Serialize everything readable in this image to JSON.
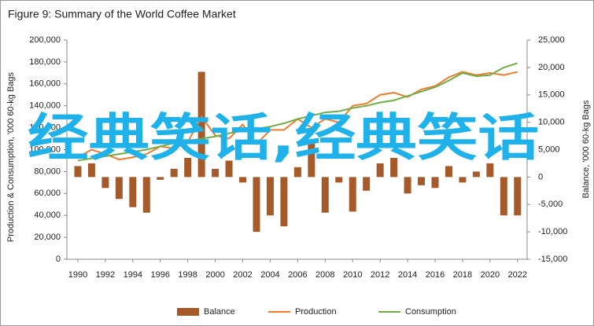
{
  "chart_data": {
    "type": "combo",
    "title": "Figure 9: Summary of the World Coffee Market",
    "y_label": "Production & Consumption, '000 60-kg Bags",
    "y2_label": "Balance, '000 60-kg Bags",
    "annotation": "经典笑话,经典笑话",
    "x": [
      1990,
      1991,
      1992,
      1993,
      1994,
      1995,
      1996,
      1997,
      1998,
      1999,
      2000,
      2001,
      2002,
      2003,
      2004,
      2005,
      2006,
      2007,
      2008,
      2009,
      2010,
      2011,
      2012,
      2013,
      2014,
      2015,
      2016,
      2017,
      2018,
      2019,
      2020,
      2021,
      2022
    ],
    "xlim": [
      1989.2,
      2022.7
    ],
    "xticks": [
      1990,
      1992,
      1994,
      1996,
      1998,
      2000,
      2002,
      2004,
      2006,
      2008,
      2010,
      2012,
      2014,
      2016,
      2018,
      2020,
      2022
    ],
    "ylim": [
      0,
      200000
    ],
    "yticks": [
      0,
      {
        "value": 20000,
        "label": "20,000"
      },
      {
        "value": 40000,
        "label": "40,000"
      },
      {
        "value": 60000,
        "label": "60,000"
      },
      {
        "value": 80000,
        "label": "80,000"
      },
      {
        "value": 100000,
        "label": "100,000"
      },
      {
        "value": 120000,
        "label": "120,000"
      },
      {
        "value": 140000,
        "label": "140,000"
      },
      {
        "value": 160000,
        "label": "160,000"
      },
      {
        "value": 180000,
        "label": "180,000"
      },
      {
        "value": 200000,
        "label": "200,000"
      }
    ],
    "y2lim": [
      -15000,
      25000
    ],
    "y2ticks": [
      {
        "value": -15000,
        "label": "-15,000"
      },
      {
        "value": -10000,
        "label": "-10,000"
      },
      {
        "value": -5000,
        "label": "-5,000"
      },
      0,
      {
        "value": 5000,
        "label": "5,000"
      },
      {
        "value": 10000,
        "label": "10,000"
      },
      {
        "value": 15000,
        "label": "15,000"
      },
      {
        "value": 20000,
        "label": "20,000"
      },
      {
        "value": 25000,
        "label": "25,000"
      }
    ],
    "series": [
      {
        "name": "Balance",
        "type": "bar",
        "axis": "y2",
        "color": "#a65a2a",
        "values": [
          2000,
          2500,
          -2000,
          -4000,
          -5500,
          -6500,
          -500,
          1500,
          3500,
          19200,
          1500,
          3000,
          -1000,
          -10000,
          -7000,
          -9000,
          1800,
          6500,
          -6500,
          -1000,
          -6300,
          -2500,
          2500,
          3500,
          -3000,
          -1500,
          -2000,
          2000,
          -1000,
          1000,
          2500,
          -7000,
          -7000
        ]
      },
      {
        "name": "Production",
        "type": "line",
        "axis": "y",
        "color": "#ed7d31",
        "values": [
          93000,
          100000,
          96000,
          91000,
          93000,
          96000,
          103000,
          101000,
          107000,
          130000,
          113000,
          110000,
          123000,
          105000,
          118000,
          118000,
          128000,
          120000,
          128000,
          125000,
          140000,
          142000,
          150000,
          152000,
          148000,
          155000,
          158000,
          166000,
          171000,
          168000,
          170000,
          168000,
          171000
        ]
      },
      {
        "name": "Consumption",
        "type": "line",
        "axis": "y",
        "color": "#70ad47",
        "values": [
          90000,
          92000,
          94000,
          96000,
          98000,
          100000,
          103000,
          106000,
          108000,
          110000,
          112000,
          115000,
          117000,
          119000,
          121000,
          124000,
          128000,
          131000,
          134000,
          135000,
          138000,
          140000,
          143000,
          145000,
          149000,
          153000,
          157000,
          163000,
          170000,
          167000,
          168000,
          175000,
          179000
        ]
      }
    ]
  }
}
